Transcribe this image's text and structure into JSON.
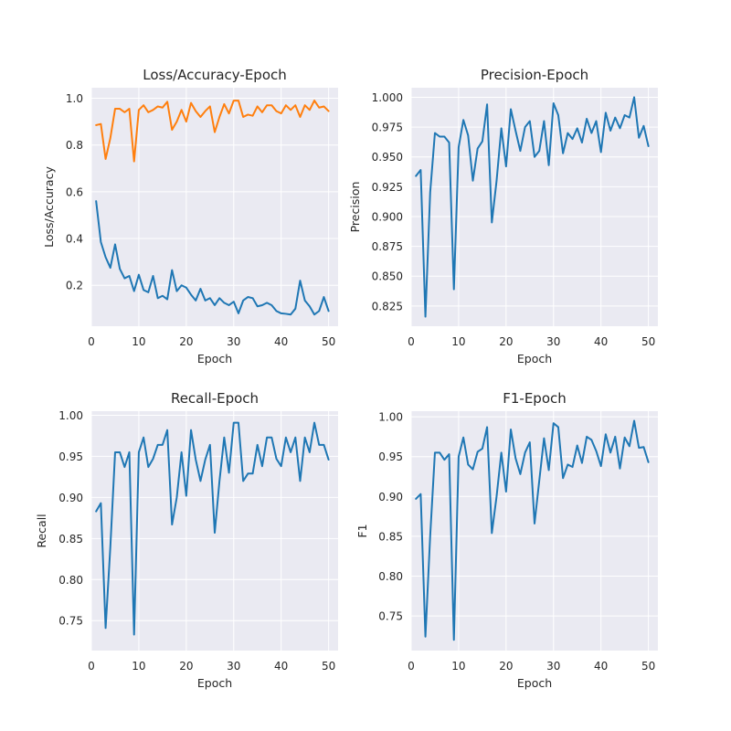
{
  "figure": {
    "background": "#ffffff",
    "panel_color": "#eaeaf2",
    "grid_color": "#ffffff",
    "series_colors": [
      "#1f77b4",
      "#ff7f0e"
    ]
  },
  "chart_data": [
    {
      "type": "line",
      "title": "Loss/Accuracy-Epoch",
      "xlabel": "Epoch",
      "ylabel": "Loss/Accuracy",
      "xlim": [
        0,
        52
      ],
      "ylim": [
        0.025,
        1.045
      ],
      "xticks": [
        0,
        10,
        20,
        30,
        40,
        50
      ],
      "xtick_labels": [
        "0",
        "10",
        "20",
        "30",
        "40",
        "50"
      ],
      "yticks": [
        0.2,
        0.4,
        0.6,
        0.8,
        1.0
      ],
      "ytick_labels": [
        "0.2",
        "0.4",
        "0.6",
        "0.8",
        "1.0"
      ],
      "grid": true,
      "x": [
        1,
        2,
        3,
        4,
        5,
        6,
        7,
        8,
        9,
        10,
        11,
        12,
        13,
        14,
        15,
        16,
        17,
        18,
        19,
        20,
        21,
        22,
        23,
        24,
        25,
        26,
        27,
        28,
        29,
        30,
        31,
        32,
        33,
        34,
        35,
        36,
        37,
        38,
        39,
        40,
        41,
        42,
        43,
        44,
        45,
        46,
        47,
        48,
        49,
        50
      ],
      "series": [
        {
          "color": "#1f77b4",
          "values": [
            0.56,
            0.385,
            0.32,
            0.275,
            0.375,
            0.27,
            0.23,
            0.24,
            0.175,
            0.245,
            0.18,
            0.17,
            0.24,
            0.145,
            0.155,
            0.14,
            0.265,
            0.175,
            0.2,
            0.19,
            0.16,
            0.135,
            0.185,
            0.135,
            0.145,
            0.115,
            0.145,
            0.125,
            0.115,
            0.13,
            0.08,
            0.135,
            0.15,
            0.145,
            0.11,
            0.115,
            0.125,
            0.115,
            0.09,
            0.08,
            0.078,
            0.075,
            0.1,
            0.22,
            0.135,
            0.11,
            0.075,
            0.09,
            0.15,
            0.09
          ]
        },
        {
          "color": "#ff7f0e",
          "values": [
            0.885,
            0.89,
            0.74,
            0.83,
            0.955,
            0.955,
            0.94,
            0.955,
            0.73,
            0.95,
            0.97,
            0.94,
            0.95,
            0.965,
            0.96,
            0.985,
            0.865,
            0.9,
            0.95,
            0.9,
            0.98,
            0.945,
            0.92,
            0.945,
            0.965,
            0.855,
            0.92,
            0.975,
            0.935,
            0.99,
            0.99,
            0.92,
            0.93,
            0.925,
            0.965,
            0.94,
            0.97,
            0.97,
            0.945,
            0.935,
            0.97,
            0.95,
            0.97,
            0.92,
            0.97,
            0.95,
            0.99,
            0.96,
            0.965,
            0.945
          ]
        }
      ]
    },
    {
      "type": "line",
      "title": "Precision-Epoch",
      "xlabel": "Epoch",
      "ylabel": "Precision",
      "xlim": [
        0,
        52
      ],
      "ylim": [
        0.808,
        1.008
      ],
      "xticks": [
        0,
        10,
        20,
        30,
        40,
        50
      ],
      "xtick_labels": [
        "0",
        "10",
        "20",
        "30",
        "40",
        "50"
      ],
      "yticks": [
        0.825,
        0.85,
        0.875,
        0.9,
        0.925,
        0.95,
        0.975,
        1.0
      ],
      "ytick_labels": [
        "0.825",
        "0.850",
        "0.875",
        "0.900",
        "0.925",
        "0.950",
        "0.975",
        "1.000"
      ],
      "grid": true,
      "x": [
        1,
        2,
        3,
        4,
        5,
        6,
        7,
        8,
        9,
        10,
        11,
        12,
        13,
        14,
        15,
        16,
        17,
        18,
        19,
        20,
        21,
        22,
        23,
        24,
        25,
        26,
        27,
        28,
        29,
        30,
        31,
        32,
        33,
        34,
        35,
        36,
        37,
        38,
        39,
        40,
        41,
        42,
        43,
        44,
        45,
        46,
        47,
        48,
        49,
        50
      ],
      "series": [
        {
          "color": "#1f77b4",
          "values": [
            0.934,
            0.939,
            0.816,
            0.92,
            0.97,
            0.967,
            0.967,
            0.962,
            0.839,
            0.958,
            0.981,
            0.968,
            0.93,
            0.957,
            0.963,
            0.994,
            0.895,
            0.93,
            0.974,
            0.942,
            0.99,
            0.972,
            0.955,
            0.975,
            0.98,
            0.95,
            0.955,
            0.98,
            0.943,
            0.995,
            0.985,
            0.953,
            0.97,
            0.965,
            0.974,
            0.962,
            0.982,
            0.97,
            0.98,
            0.954,
            0.987,
            0.972,
            0.983,
            0.974,
            0.985,
            0.983,
            1.0,
            0.966,
            0.976,
            0.959
          ]
        }
      ]
    },
    {
      "type": "line",
      "title": "Recall-Epoch",
      "xlabel": "Epoch",
      "ylabel": "Recall",
      "xlim": [
        0,
        52
      ],
      "ylim": [
        0.7135,
        1.005
      ],
      "xticks": [
        0,
        10,
        20,
        30,
        40,
        50
      ],
      "xtick_labels": [
        "0",
        "10",
        "20",
        "30",
        "40",
        "50"
      ],
      "yticks": [
        0.75,
        0.8,
        0.85,
        0.9,
        0.95,
        1.0
      ],
      "ytick_labels": [
        "0.75",
        "0.80",
        "0.85",
        "0.90",
        "0.95",
        "1.00"
      ],
      "grid": true,
      "x": [
        1,
        2,
        3,
        4,
        5,
        6,
        7,
        8,
        9,
        10,
        11,
        12,
        13,
        14,
        15,
        16,
        17,
        18,
        19,
        20,
        21,
        22,
        23,
        24,
        25,
        26,
        27,
        28,
        29,
        30,
        31,
        32,
        33,
        34,
        35,
        36,
        37,
        38,
        39,
        40,
        41,
        42,
        43,
        44,
        45,
        46,
        47,
        48,
        49,
        50
      ],
      "series": [
        {
          "color": "#1f77b4",
          "values": [
            0.883,
            0.893,
            0.741,
            0.84,
            0.955,
            0.955,
            0.937,
            0.955,
            0.733,
            0.955,
            0.973,
            0.937,
            0.947,
            0.964,
            0.964,
            0.982,
            0.867,
            0.9,
            0.955,
            0.902,
            0.982,
            0.946,
            0.92,
            0.946,
            0.964,
            0.857,
            0.92,
            0.973,
            0.93,
            0.991,
            0.991,
            0.92,
            0.929,
            0.929,
            0.964,
            0.938,
            0.973,
            0.973,
            0.947,
            0.938,
            0.973,
            0.955,
            0.973,
            0.92,
            0.973,
            0.955,
            0.991,
            0.964,
            0.964,
            0.946
          ]
        }
      ]
    },
    {
      "type": "line",
      "title": "F1-Epoch",
      "xlabel": "Epoch",
      "ylabel": "F1",
      "xlim": [
        0,
        52
      ],
      "ylim": [
        0.7065,
        1.007
      ],
      "xticks": [
        0,
        10,
        20,
        30,
        40,
        50
      ],
      "xtick_labels": [
        "0",
        "10",
        "20",
        "30",
        "40",
        "50"
      ],
      "yticks": [
        0.75,
        0.8,
        0.85,
        0.9,
        0.95,
        1.0
      ],
      "ytick_labels": [
        "0.75",
        "0.80",
        "0.85",
        "0.90",
        "0.95",
        "1.00"
      ],
      "grid": true,
      "x": [
        1,
        2,
        3,
        4,
        5,
        6,
        7,
        8,
        9,
        10,
        11,
        12,
        13,
        14,
        15,
        16,
        17,
        18,
        19,
        20,
        21,
        22,
        23,
        24,
        25,
        26,
        27,
        28,
        29,
        30,
        31,
        32,
        33,
        34,
        35,
        36,
        37,
        38,
        39,
        40,
        41,
        42,
        43,
        44,
        45,
        46,
        47,
        48,
        49,
        50
      ],
      "series": [
        {
          "color": "#1f77b4",
          "values": [
            0.897,
            0.903,
            0.724,
            0.85,
            0.955,
            0.955,
            0.946,
            0.953,
            0.72,
            0.95,
            0.974,
            0.94,
            0.934,
            0.956,
            0.96,
            0.987,
            0.854,
            0.9,
            0.955,
            0.906,
            0.984,
            0.948,
            0.928,
            0.955,
            0.968,
            0.866,
            0.92,
            0.973,
            0.933,
            0.992,
            0.987,
            0.923,
            0.94,
            0.937,
            0.964,
            0.942,
            0.975,
            0.971,
            0.957,
            0.938,
            0.978,
            0.955,
            0.975,
            0.935,
            0.974,
            0.963,
            0.995,
            0.961,
            0.962,
            0.943
          ]
        }
      ]
    }
  ]
}
